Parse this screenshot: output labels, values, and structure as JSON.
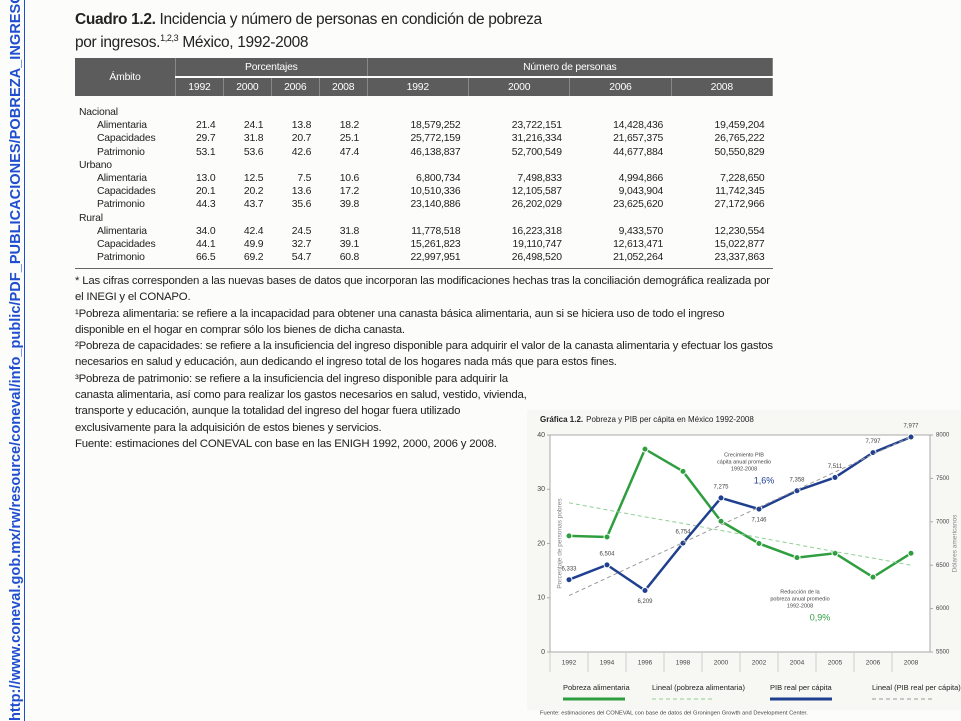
{
  "side_link": [
    "http://www.coneval.gob.mx/rw/resource/coneval/info_public/PDF_PUBLICACIONES/POBR",
    "EZA_INGRESOS_MEXICO_WEB.pdf"
  ],
  "table": {
    "label": "Cuadro 1.2.",
    "title": "Incidencia y número de personas en condición de pobreza por ingresos.",
    "title_sup": "1,2,3",
    "title_end": "México, 1992-2008",
    "header": {
      "ambito": "Ámbito",
      "groups": [
        "Porcentajes",
        "Número de personas"
      ],
      "years": [
        "1992",
        "2000",
        "2006",
        "2008",
        "1992",
        "2000",
        "2006",
        "2008"
      ]
    },
    "sections": [
      {
        "name": "Nacional",
        "rows": [
          [
            "Alimentaria",
            "21.4",
            "24.1",
            "13.8",
            "18.2",
            "18,579,252",
            "23,722,151",
            "14,428,436",
            "19,459,204"
          ],
          [
            "Capacidades",
            "29.7",
            "31.8",
            "20.7",
            "25.1",
            "25,772,159",
            "31,216,334",
            "21,657,375",
            "26,765,222"
          ],
          [
            "Patrimonio",
            "53.1",
            "53.6",
            "42.6",
            "47.4",
            "46,138,837",
            "52,700,549",
            "44,677,884",
            "50,550,829"
          ]
        ]
      },
      {
        "name": "Urbano",
        "rows": [
          [
            "Alimentaria",
            "13.0",
            "12.5",
            "7.5",
            "10.6",
            "6,800,734",
            "7,498,833",
            "4,994,866",
            "7,228,650"
          ],
          [
            "Capacidades",
            "20.1",
            "20.2",
            "13.6",
            "17.2",
            "10,510,336",
            "12,105,587",
            "9,043,904",
            "11,742,345"
          ],
          [
            "Patrimonio",
            "44.3",
            "43.7",
            "35.6",
            "39.8",
            "23,140,886",
            "26,202,029",
            "23,625,620",
            "27,172,966"
          ]
        ]
      },
      {
        "name": "Rural",
        "rows": [
          [
            "Alimentaria",
            "34.0",
            "42.4",
            "24.5",
            "31.8",
            "11,778,518",
            "16,223,318",
            "9,433,570",
            "12,230,554"
          ],
          [
            "Capacidades",
            "44.1",
            "49.9",
            "32.7",
            "39.1",
            "15,261,823",
            "19,110,747",
            "12,613,471",
            "15,022,877"
          ],
          [
            "Patrimonio",
            "66.5",
            "69.2",
            "54.7",
            "60.8",
            "22,997,951",
            "26,498,520",
            "21,052,264",
            "23,337,863"
          ]
        ]
      }
    ]
  },
  "notes": [
    "* Las cifras corresponden a las nuevas bases de datos que incorporan las modificaciones hechas tras la conciliación demográfica realizada por el INEGI y el CONAPO.",
    "¹Pobreza alimentaria: se refiere a la incapacidad para obtener una canasta básica alimentaria, aun si se hiciera uso de todo el ingreso disponible en el hogar en comprar sólo los bienes de dicha canasta.",
    "²Pobreza de capacidades: se refiere a la insuficiencia del ingreso disponible para adquirir el valor de la canasta alimentaria y efectuar los gastos necesarios en salud y educación, aun dedicando el ingreso total de los hogares nada más que para estos fines.",
    "³Pobreza de patrimonio: se refiere a la insuficiencia del ingreso disponible para adquirir la canasta alimentaria, así como para realizar los gastos necesarios en salud, vestido, vivienda, transporte y educación, aunque la totalidad del ingreso del hogar fuera utilizado exclusivamente para la adquisición de estos bienes y servicios.",
    "Fuente: estimaciones del CONEVAL con base en las ENIGH 1992, 2000,  2006 y 2008."
  ],
  "chart_data": {
    "type": "line",
    "title_label": "Gráfica 1.2.",
    "title": "Pobreza y PIB per cápita en México 1992-2008",
    "y_label": "Porcentaje de personas pobres",
    "y2_label": "Dólares americanos",
    "categories": [
      "1992",
      "1994",
      "1996",
      "1998",
      "2000",
      "2002",
      "2004",
      "2005",
      "2006",
      "2008"
    ],
    "ylim": [
      0,
      40
    ],
    "yticks": [
      0,
      10,
      20,
      30,
      40
    ],
    "y2lim": [
      5500,
      8000
    ],
    "y2ticks": [
      5500,
      6000,
      6500,
      7000,
      7500,
      8000
    ],
    "grid": false,
    "series": [
      {
        "name": "Pobreza alimentaria",
        "color": "#2f9e3f",
        "values": [
          21.4,
          21.2,
          37.4,
          33.3,
          24.1,
          20.0,
          17.4,
          18.2,
          13.8,
          18.2
        ]
      },
      {
        "name": "Lineal (pobreza alimentaria)",
        "color": "#8fcf95",
        "dashed": true,
        "values": [
          27.5,
          26.2,
          24.9,
          23.7,
          22.4,
          21.1,
          19.8,
          18.5,
          17.3,
          16.0
        ]
      },
      {
        "name": "PIB real per cápita",
        "color": "#1f3f8f",
        "axis": "y2",
        "values": [
          6333,
          6504,
          6209,
          6754,
          7275,
          7146,
          7358,
          7511,
          7797,
          7977
        ],
        "value_labels": [
          "6,333",
          "6,504",
          "6,209",
          "6,754",
          "7,275",
          "7,146",
          "7,358",
          "7,511",
          "7,797",
          "7,977"
        ]
      },
      {
        "name": "Lineal (PIB real per cápita)",
        "color": "#9a9a9a",
        "axis": "y2",
        "dashed": true,
        "values": [
          6150,
          6353,
          6557,
          6760,
          6963,
          7167,
          7370,
          7573,
          7777,
          7980
        ]
      }
    ],
    "annotations": [
      {
        "lines": [
          "Crecimiento PIB",
          "cápita anual promedio",
          "1992-2008"
        ],
        "value": "1,6%"
      },
      {
        "lines": [
          "Reducción de la",
          "pobreza anual promedio",
          "1992-2008"
        ],
        "value": "0,9%"
      }
    ],
    "source": "Fuente: estimaciones del CONEVAL con base de datos del Groningen Growth and Development Center."
  }
}
